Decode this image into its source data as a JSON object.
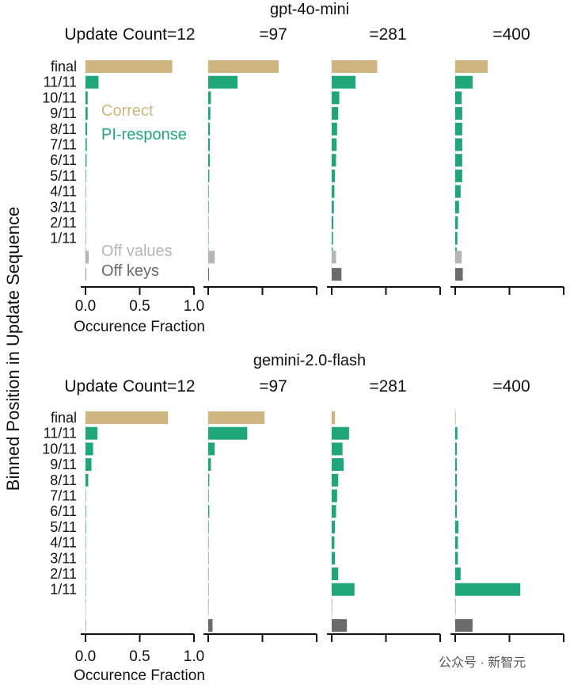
{
  "y_axis_label": "Binned Position in Update Sequence",
  "watermark": "公众号 · 新智元",
  "colors": {
    "correct": "#cfb57f",
    "pi_response": "#1fa779",
    "off_values": "#b5b5b5",
    "off_keys": "#6b6b6b"
  },
  "chart_data": [
    {
      "type": "bar",
      "orientation": "horizontal",
      "model": "gpt-4o-mini",
      "xlabel": "Occurence Fraction",
      "xlim": [
        0,
        1
      ],
      "xticks": [
        "0.0",
        "0.5",
        "1.0"
      ],
      "ylabel": "Binned Position in Update Sequence",
      "categories": [
        "final",
        "11/11",
        "10/11",
        "9/11",
        "8/11",
        "7/11",
        "6/11",
        "5/11",
        "4/11",
        "3/11",
        "2/11",
        "1/11",
        "",
        ""
      ],
      "legend": [
        "Correct",
        "PI-response",
        "Off values",
        "Off keys"
      ],
      "panels": [
        {
          "title": "Update Count=12",
          "correct": 0.8,
          "pi_response": [
            0.12,
            0.02,
            0.02,
            0.015,
            0.012,
            0.01,
            0.005,
            0.0,
            0.0,
            0.0,
            0.0,
            0.0
          ],
          "off_values": 0.03,
          "off_keys": 0.005
        },
        {
          "title": "=97",
          "correct": 0.65,
          "pi_response": [
            0.27,
            0.025,
            0.02,
            0.015,
            0.015,
            0.015,
            0.01,
            0.005,
            0.005,
            0.003,
            0.003,
            0.002
          ],
          "off_values": 0.06,
          "off_keys": 0.008
        },
        {
          "title": "=281",
          "correct": 0.42,
          "pi_response": [
            0.22,
            0.07,
            0.06,
            0.05,
            0.045,
            0.04,
            0.03,
            0.025,
            0.02,
            0.015,
            0.012,
            0.01
          ],
          "off_values": 0.04,
          "off_keys": 0.09
        },
        {
          "title": "=400",
          "correct": 0.3,
          "pi_response": [
            0.16,
            0.06,
            0.065,
            0.065,
            0.065,
            0.065,
            0.065,
            0.05,
            0.035,
            0.025,
            0.02,
            0.015
          ],
          "off_values": 0.06,
          "off_keys": 0.07
        }
      ]
    },
    {
      "type": "bar",
      "orientation": "horizontal",
      "model": "gemini-2.0-flash",
      "xlabel": "Occurence Fraction",
      "xlim": [
        0,
        1
      ],
      "xticks": [
        "0.0",
        "0.5",
        "1.0"
      ],
      "ylabel": "Binned Position in Update Sequence",
      "categories": [
        "final",
        "11/11",
        "10/11",
        "9/11",
        "8/11",
        "7/11",
        "6/11",
        "5/11",
        "4/11",
        "3/11",
        "2/11",
        "1/11",
        "",
        ""
      ],
      "legend": [
        "Correct",
        "PI-response",
        "Off values",
        "Off keys"
      ],
      "panels": [
        {
          "title": "Update Count=12",
          "correct": 0.76,
          "pi_response": [
            0.11,
            0.07,
            0.055,
            0.025,
            0.0,
            0.005,
            0.005,
            0.0,
            0.0,
            0.0,
            0.0,
            0.0
          ],
          "off_values": 0.0,
          "off_keys": 0.0
        },
        {
          "title": "=97",
          "correct": 0.52,
          "pi_response": [
            0.36,
            0.06,
            0.025,
            0.01,
            0.005,
            0.01,
            0.005,
            0.0,
            0.0,
            0.0,
            0.0,
            0.0
          ],
          "off_values": 0.005,
          "off_keys": 0.04
        },
        {
          "title": "=281",
          "correct": 0.03,
          "pi_response": [
            0.16,
            0.1,
            0.11,
            0.06,
            0.05,
            0.04,
            0.03,
            0.025,
            0.03,
            0.06,
            0.21,
            0.0
          ],
          "off_values": 0.005,
          "off_keys": 0.14
        },
        {
          "title": "=400",
          "correct": 0.005,
          "pi_response": [
            0.02,
            0.015,
            0.015,
            0.015,
            0.015,
            0.015,
            0.03,
            0.025,
            0.025,
            0.05,
            0.6,
            0.0
          ],
          "off_values": 0.005,
          "off_keys": 0.16
        }
      ]
    }
  ]
}
